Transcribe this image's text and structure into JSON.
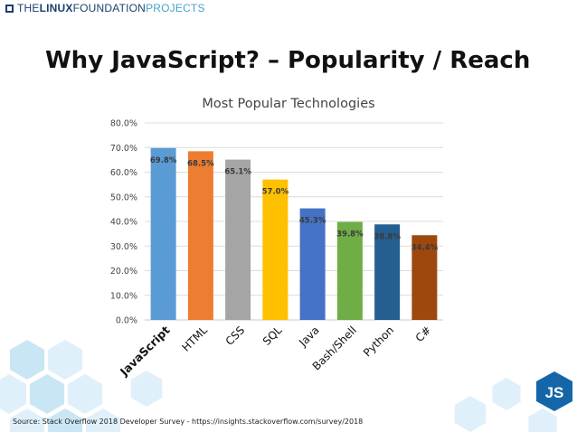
{
  "header": {
    "logo_prefix": "THE",
    "logo_bold": "LINUX",
    "logo_mid": "FOUNDATION",
    "logo_light": "PROJECTS"
  },
  "slide_title": "Why JavaScript? – Popularity / Reach",
  "badge_text": "JS",
  "source": "Source: Stack Overflow 2018 Developer Survey - https://insights.stackoverflow.com/survey/2018",
  "colors": {
    "brand_navy": "#1b3f6f",
    "brand_light_blue": "#4aa3c8",
    "hexagon_light": "#dff0fa",
    "hexagon_mid": "#c9e6f5"
  },
  "chart_data": {
    "type": "bar",
    "title": "Most Popular Technologies",
    "categories": [
      "JavaScript",
      "HTML",
      "CSS",
      "SQL",
      "Java",
      "Bash/Shell",
      "Python",
      "C#"
    ],
    "values": [
      69.8,
      68.5,
      65.1,
      57.0,
      45.3,
      39.8,
      38.8,
      34.4
    ],
    "value_labels": [
      "69.8%",
      "68.5%",
      "65.1%",
      "57.0%",
      "45.3%",
      "39.8%",
      "38.8%",
      "34.4%"
    ],
    "bar_colors": [
      "#5b9bd5",
      "#ed7d31",
      "#a5a5a5",
      "#ffc000",
      "#4472c4",
      "#70ad47",
      "#255e91",
      "#9e480e"
    ],
    "y_ticks": [
      "0.0%",
      "10.0%",
      "20.0%",
      "30.0%",
      "40.0%",
      "50.0%",
      "60.0%",
      "70.0%",
      "80.0%"
    ],
    "ylim": [
      0,
      80
    ],
    "grid": true,
    "xlabel": "",
    "ylabel": ""
  }
}
